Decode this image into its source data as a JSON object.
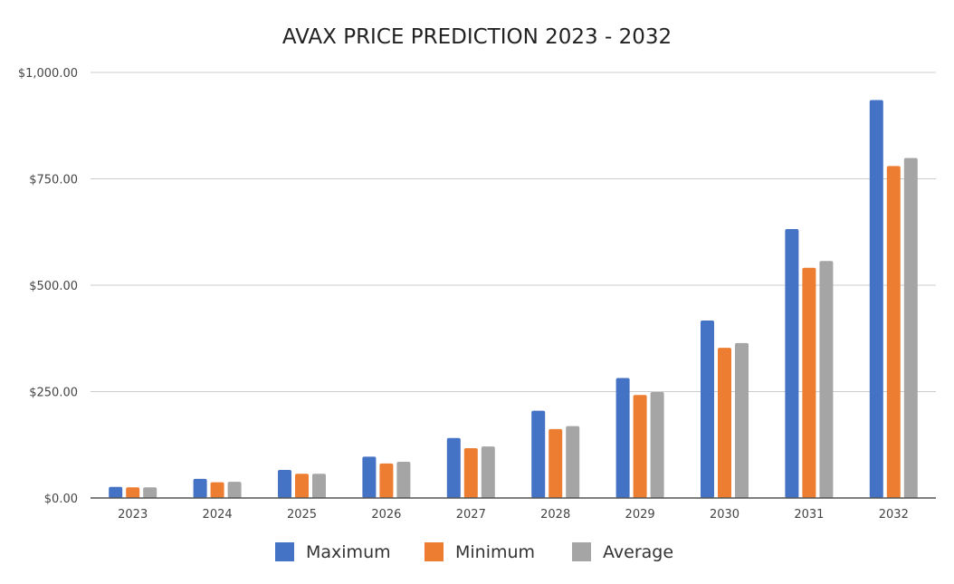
{
  "chart_data": {
    "type": "bar",
    "title": "AVAX PRICE PREDICTION 2023 - 2032",
    "xlabel": "",
    "ylabel": "",
    "ylim": [
      0,
      1000
    ],
    "yticks": [
      "$0.00",
      "$250.00",
      "$500.00",
      "$750.00",
      "$1,000.00"
    ],
    "ytick_values": [
      0,
      250,
      500,
      750,
      1000
    ],
    "grid": true,
    "legend_position": "bottom",
    "categories": [
      "2023",
      "2024",
      "2025",
      "2026",
      "2027",
      "2028",
      "2029",
      "2030",
      "2031",
      "2032"
    ],
    "series": [
      {
        "name": "Maximum",
        "color": "#4472C4",
        "values": [
          26,
          45,
          66,
          97,
          141,
          205,
          282,
          417,
          632,
          935
        ]
      },
      {
        "name": "Minimum",
        "color": "#ED7D31",
        "values": [
          25,
          37,
          57,
          81,
          117,
          162,
          242,
          353,
          541,
          780
        ]
      },
      {
        "name": "Average",
        "color": "#A5A5A5",
        "values": [
          25,
          38,
          57,
          85,
          121,
          169,
          249,
          364,
          557,
          799
        ]
      }
    ]
  }
}
